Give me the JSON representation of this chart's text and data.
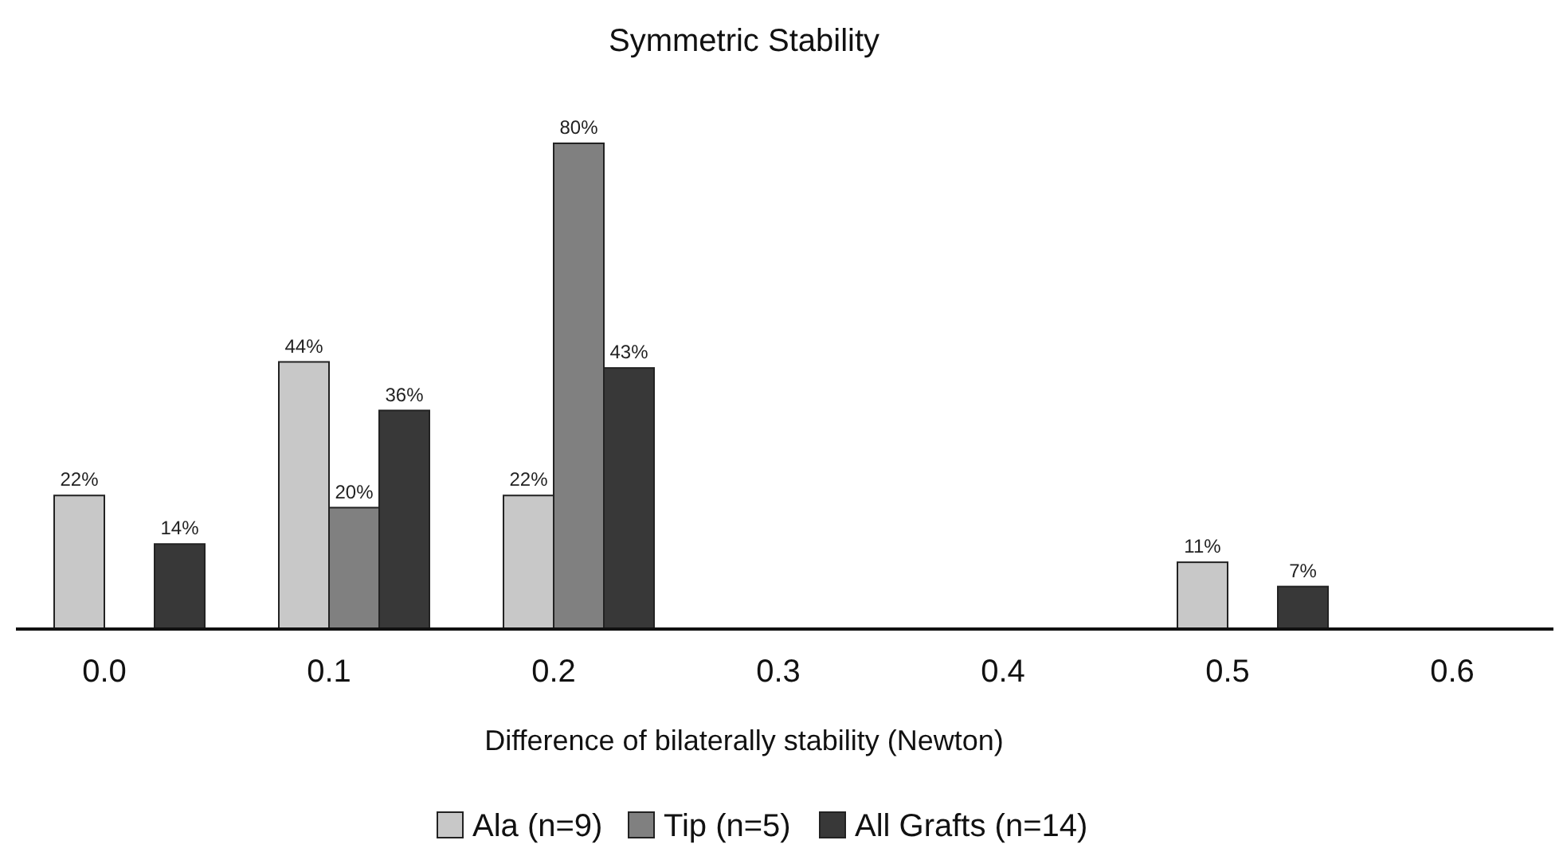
{
  "chart_data": {
    "type": "bar",
    "title": "Symmetric Stability",
    "xlabel": "Difference of bilaterally stability (Newton)",
    "categories": [
      "0.0",
      "0.1",
      "0.2",
      "0.3",
      "0.4",
      "0.5",
      "0.6"
    ],
    "series": [
      {
        "name": "Ala (n=9)",
        "color": "#c8c8c8",
        "values": [
          22,
          44,
          22,
          null,
          null,
          11,
          null
        ],
        "value_labels": [
          "22%",
          "44%",
          "22%",
          null,
          null,
          "11%",
          null
        ]
      },
      {
        "name": "Tip (n=5)",
        "color": "#808080",
        "values": [
          null,
          20,
          80,
          null,
          null,
          null,
          null
        ],
        "value_labels": [
          null,
          "20%",
          "80%",
          null,
          null,
          null,
          null
        ]
      },
      {
        "name": "All Grafts (n=14)",
        "color": "#383838",
        "values": [
          14,
          36,
          43,
          null,
          null,
          7,
          null
        ],
        "value_labels": [
          "14%",
          "36%",
          "43%",
          null,
          null,
          "7%",
          null
        ]
      }
    ],
    "legend": "bottom"
  }
}
